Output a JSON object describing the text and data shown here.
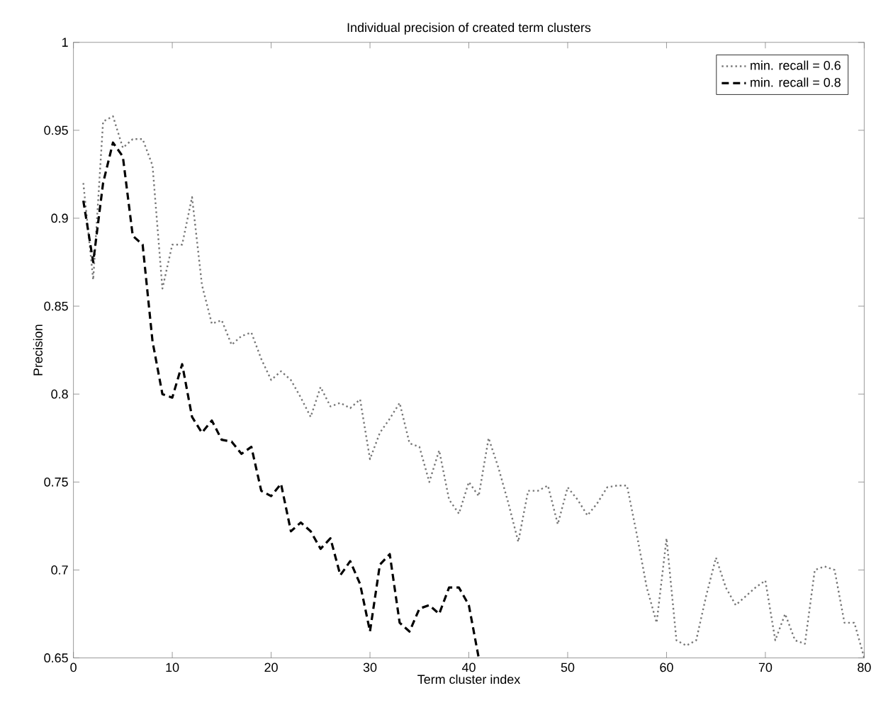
{
  "chart_data": {
    "type": "line",
    "title": "Individual precision of created term clusters",
    "xlabel": "Term cluster index",
    "ylabel": "Precision",
    "xlim": [
      0,
      80
    ],
    "xticks": [
      0,
      10,
      20,
      30,
      40,
      50,
      60,
      70,
      80
    ],
    "ylim": [
      0.65,
      1
    ],
    "yticks": [
      0.65,
      0.7,
      0.75,
      0.8,
      0.85,
      0.9,
      0.95,
      1
    ],
    "legend": "top right",
    "grid": false,
    "marker": "none",
    "series": [
      {
        "name": "min. recall = 0.6",
        "color": "#777777",
        "line_style": "dotted",
        "x": [
          1,
          2,
          3,
          4,
          5,
          6,
          7,
          8,
          9,
          10,
          11,
          12,
          13,
          14,
          15,
          16,
          17,
          18,
          19,
          20,
          21,
          22,
          23,
          24,
          25,
          26,
          27,
          28,
          29,
          30,
          31,
          32,
          33,
          34,
          35,
          36,
          37,
          38,
          39,
          40,
          41,
          42,
          43,
          44,
          45,
          46,
          47,
          48,
          49,
          50,
          51,
          52,
          53,
          54,
          55,
          56,
          57,
          58,
          59,
          60,
          61,
          62,
          63,
          64,
          65,
          66,
          67,
          68,
          69,
          70,
          71,
          72,
          73,
          74,
          75,
          76,
          77,
          78,
          79,
          80
        ],
        "values": [
          0.92,
          0.865,
          0.955,
          0.958,
          0.94,
          0.945,
          0.945,
          0.93,
          0.86,
          0.885,
          0.885,
          0.912,
          0.862,
          0.84,
          0.842,
          0.828,
          0.833,
          0.835,
          0.82,
          0.808,
          0.813,
          0.808,
          0.798,
          0.787,
          0.804,
          0.793,
          0.795,
          0.792,
          0.797,
          0.763,
          0.778,
          0.786,
          0.795,
          0.772,
          0.77,
          0.75,
          0.768,
          0.74,
          0.732,
          0.75,
          0.742,
          0.775,
          0.758,
          0.738,
          0.716,
          0.745,
          0.745,
          0.748,
          0.726,
          0.747,
          0.74,
          0.731,
          0.738,
          0.747,
          0.748,
          0.748,
          0.72,
          0.69,
          0.67,
          0.718,
          0.66,
          0.657,
          0.66,
          0.685,
          0.707,
          0.69,
          0.68,
          0.685,
          0.69,
          0.694,
          0.66,
          0.675,
          0.66,
          0.658,
          0.7,
          0.702,
          0.7,
          0.67,
          0.67,
          0.65
        ]
      },
      {
        "name": "min. recall = 0.8",
        "color": "#000000",
        "line_style": "dashed",
        "x": [
          1,
          2,
          3,
          4,
          5,
          6,
          7,
          8,
          9,
          10,
          11,
          12,
          13,
          14,
          15,
          16,
          17,
          18,
          19,
          20,
          21,
          22,
          23,
          24,
          25,
          26,
          27,
          28,
          29,
          30,
          31,
          32,
          33,
          34,
          35,
          36,
          37,
          38,
          39,
          40,
          41
        ],
        "values": [
          0.91,
          0.875,
          0.92,
          0.943,
          0.935,
          0.89,
          0.885,
          0.83,
          0.8,
          0.798,
          0.817,
          0.787,
          0.778,
          0.785,
          0.774,
          0.773,
          0.766,
          0.77,
          0.745,
          0.742,
          0.749,
          0.722,
          0.727,
          0.722,
          0.712,
          0.718,
          0.697,
          0.705,
          0.692,
          0.665,
          0.703,
          0.709,
          0.67,
          0.665,
          0.678,
          0.68,
          0.675,
          0.69,
          0.69,
          0.68,
          0.65
        ]
      }
    ]
  }
}
